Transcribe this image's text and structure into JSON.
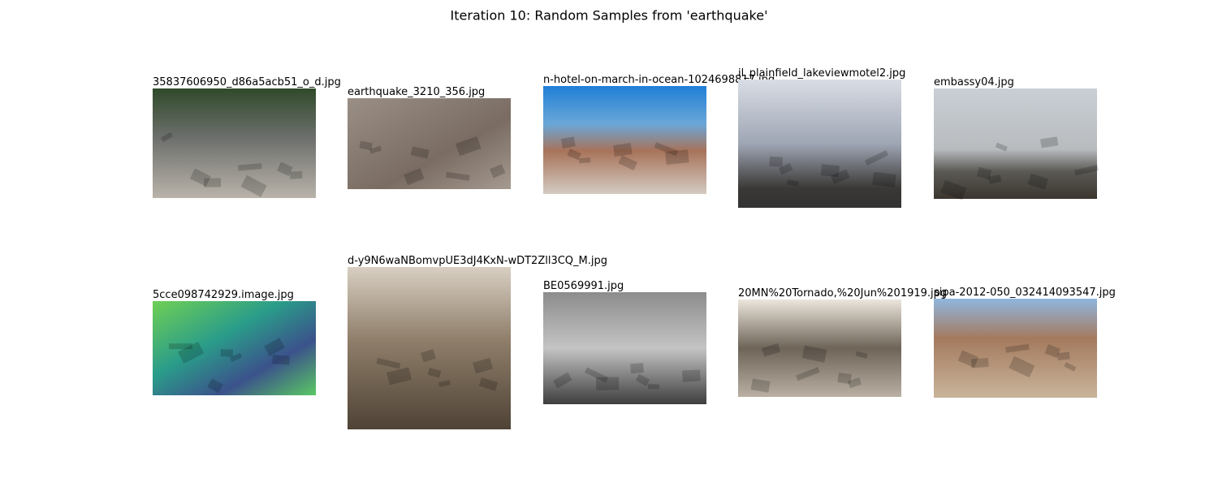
{
  "title": "Iteration 10: Random Samples from 'earthquake'",
  "images": [
    {
      "filename": "35837606950_d86a5acb51_o_d.jpg"
    },
    {
      "filename": "earthquake_3210_356.jpg"
    },
    {
      "filename": "n-hotel-on-march-in-ocean-1024698817.jpg"
    },
    {
      "filename": "il_plainfield_lakeviewmotel2.jpg"
    },
    {
      "filename": "embassy04.jpg"
    },
    {
      "filename": "5cce098742929.image.jpg"
    },
    {
      "filename": "d-y9N6waNBomvpUE3dJ4KxN-wDT2Zll3CQ_M.jpg"
    },
    {
      "filename": "BE0569991.jpg"
    },
    {
      "filename": "20MN%20Tornado,%20Jun%201919.jpg"
    },
    {
      "filename": "sipa-2012-050_032414093547.jpg"
    }
  ]
}
